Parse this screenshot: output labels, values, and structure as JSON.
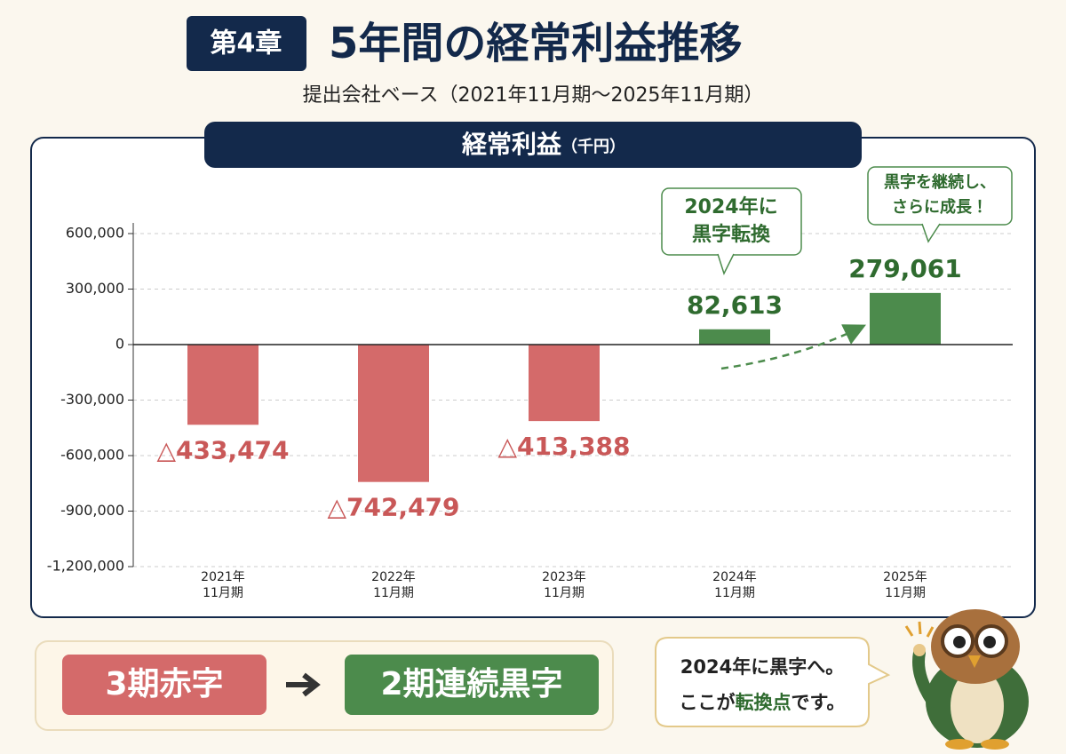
{
  "header": {
    "chapter": "第4章",
    "title": "5年間の経常利益推移",
    "subtitle": "提出会社ベース（2021年11月期〜2025年11月期）"
  },
  "chart_data": {
    "type": "bar",
    "title": "経常利益",
    "unit": "（千円）",
    "categories": [
      "2021年\n11月期",
      "2022年\n11月期",
      "2023年\n11月期",
      "2024年\n11月期",
      "2025年\n11月期"
    ],
    "values": [
      -433474,
      -742479,
      -413388,
      82613,
      279061
    ],
    "value_labels": [
      "△433,474",
      "△742,479",
      "△413,388",
      "82,613",
      "279,061"
    ],
    "negative_color": "#d46a6a",
    "positive_color": "#4c8b4c",
    "ylim": [
      -1200000,
      600000
    ],
    "yticks": [
      {
        "value": -1200000,
        "label": "-1,200,000"
      },
      {
        "value": -900000,
        "label": "-900,000"
      },
      {
        "value": -600000,
        "label": "-600,000"
      },
      {
        "value": -300000,
        "label": "-300,000"
      },
      0,
      {
        "value": 300000,
        "label": "300,000"
      },
      {
        "value": 600000,
        "label": "600,000"
      }
    ],
    "grid": true,
    "annotations": [
      [
        "2024年に",
        "黒字転換"
      ],
      [
        "黒字を継続し、",
        "さらに成長！"
      ]
    ]
  },
  "summary": {
    "before": "3期赤字",
    "after": "2期連続黒字"
  },
  "speech": {
    "line1": "2024年に黒字へ。",
    "line2_start": "ここが",
    "line2_highlight": "転換点",
    "line2_end": "です。"
  }
}
